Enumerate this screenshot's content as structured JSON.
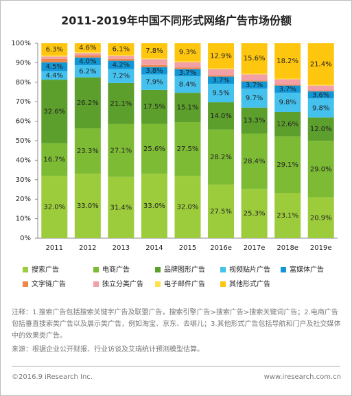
{
  "chart_data": {
    "type": "stacked_bar",
    "title": "2011-2019年中国不同形式网络广告市场份额",
    "categories": [
      "2011",
      "2012",
      "2013",
      "2014",
      "2015",
      "2016e",
      "2017e",
      "2018e",
      "2019e"
    ],
    "ylim": [
      0,
      100
    ],
    "yticks": [
      {
        "value": 0,
        "label": "0%"
      },
      {
        "value": 10,
        "label": "10%"
      },
      {
        "value": 20,
        "label": "20%"
      },
      {
        "value": 30,
        "label": "30%"
      },
      {
        "value": 40,
        "label": "40%"
      },
      {
        "value": 50,
        "label": "50%"
      },
      {
        "value": 60,
        "label": "60%"
      },
      {
        "value": 70,
        "label": "70%"
      },
      {
        "value": 80,
        "label": "80%"
      },
      {
        "value": 90,
        "label": "90%"
      },
      {
        "value": 100,
        "label": "100%"
      }
    ],
    "series": [
      {
        "name": "搜索广告",
        "color": "#9ccc3c",
        "values": [
          32.0,
          33.0,
          31.4,
          33.0,
          32.0,
          27.5,
          25.3,
          23.1,
          20.9
        ],
        "value_labels": [
          "32.0%",
          "33.0%",
          "31.4%",
          "33.0%",
          "32.0%",
          "27.5%",
          "25.3%",
          "23.1%",
          "20.9%"
        ]
      },
      {
        "name": "电商广告",
        "color": "#7dbb35",
        "values": [
          16.7,
          23.3,
          27.1,
          25.6,
          27.5,
          28.2,
          28.4,
          29.1,
          29.0
        ],
        "value_labels": [
          "16.7%",
          "23.3%",
          "27.1%",
          "25.6%",
          "27.5%",
          "28.2%",
          "28.4%",
          "29.1%",
          "29.0%"
        ]
      },
      {
        "name": "品牌图形广告",
        "color": "#5c9f2c",
        "values": [
          32.6,
          26.2,
          21.1,
          17.5,
          15.1,
          14.0,
          13.3,
          12.6,
          12.0
        ],
        "value_labels": [
          "32.6%",
          "26.2%",
          "21.1%",
          "17.5%",
          "15.1%",
          "14.0%",
          "13.3%",
          "12.6%",
          "12.0%"
        ]
      },
      {
        "name": "视频贴片广告",
        "color": "#45c1ee",
        "values": [
          4.4,
          6.2,
          7.2,
          7.9,
          8.4,
          9.5,
          9.7,
          9.8,
          9.8
        ],
        "value_labels": [
          "4.4%",
          "6.2%",
          "7.2%",
          "7.9%",
          "8.4%",
          "9.5%",
          "9.7%",
          "9.8%",
          "9.8%"
        ]
      },
      {
        "name": "富媒体广告",
        "color": "#1196d6",
        "values": [
          4.5,
          4.0,
          4.2,
          3.8,
          3.7,
          3.7,
          3.7,
          3.7,
          3.6
        ],
        "value_labels": [
          "4.5%",
          "4.0%",
          "4.2%",
          "3.8%",
          "3.7%",
          "3.7%",
          "3.7%",
          "3.7%",
          "3.6%"
        ]
      },
      {
        "name": "文字链广告",
        "color": "#f0874a",
        "values": [
          1.8,
          1.2,
          1.0,
          1.0,
          0.8,
          0.6,
          0.5,
          0.4,
          0.4
        ]
      },
      {
        "name": "独立分类广告",
        "color": "#f2a0a6",
        "values": [
          1.2,
          1.1,
          1.5,
          3.0,
          2.8,
          3.2,
          3.1,
          2.8,
          2.6
        ]
      },
      {
        "name": "电子邮件广告",
        "color": "#ffe14d",
        "values": [
          0.5,
          0.4,
          0.4,
          0.4,
          0.4,
          0.4,
          0.4,
          0.3,
          0.3
        ]
      },
      {
        "name": "其他形式广告",
        "color": "#ffc60f",
        "values": [
          6.3,
          4.6,
          6.1,
          7.8,
          9.3,
          12.9,
          15.6,
          18.2,
          21.4
        ],
        "value_labels": [
          "6.3%",
          "4.6%",
          "6.1%",
          "7.8%",
          "9.3%",
          "12.9%",
          "15.6%",
          "18.2%",
          "21.4%"
        ]
      }
    ]
  },
  "notes": "注释：1.搜索广告包括搜索关键字广告及联盟广告，搜索引擎广告>搜索广告>搜索关键词广告；2.电商广告包括垂直搜索类广告以及展示类广告，例如淘宝、京东、去哪儿；3.其他形式广告包括导航和门户及社交媒体中的效果类广告。",
  "source": "来源：根据企业公开财报、行业访谈及艾瑞统计预测模型估算。",
  "footer": {
    "copyright": "©2016.9 iResearch Inc.",
    "website": "www.iresearch.com.cn"
  }
}
